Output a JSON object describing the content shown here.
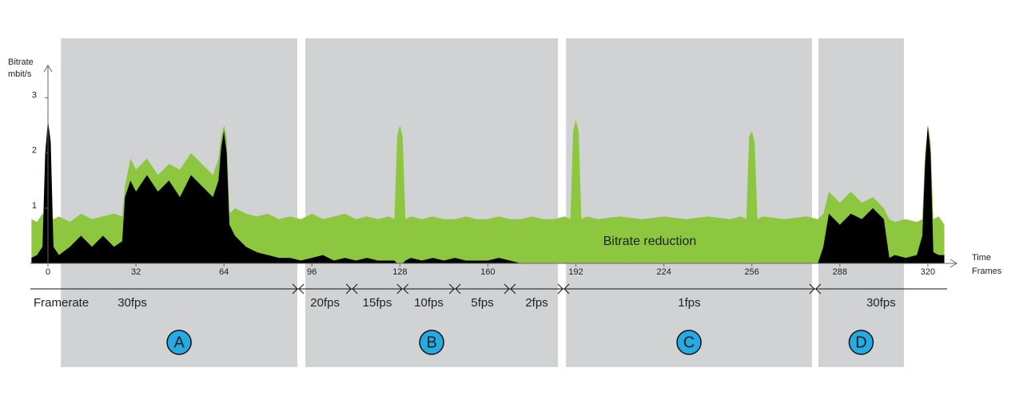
{
  "chart_data": {
    "type": "area",
    "y_label": [
      "Bitrate",
      "mbit/s"
    ],
    "x_label": [
      "Time",
      "Frames"
    ],
    "annotation": "Bitrate reduction",
    "xlim": [
      -6.4,
      327
    ],
    "ylim": [
      0,
      3.5
    ],
    "xticks": [
      0,
      32,
      64,
      96,
      128,
      160,
      192,
      224,
      256,
      288,
      320
    ],
    "yticks": [
      1,
      2,
      3
    ],
    "x": [
      -6,
      -4,
      -2,
      -1,
      0,
      1,
      2,
      4,
      8,
      12,
      16,
      20,
      24,
      27,
      28,
      30,
      32,
      36,
      40,
      44,
      48,
      52,
      56,
      60,
      62,
      63,
      64,
      65,
      66,
      68,
      72,
      76,
      80,
      84,
      88,
      92,
      96,
      100,
      104,
      108,
      112,
      116,
      120,
      124,
      126,
      127,
      128,
      129,
      130,
      132,
      136,
      140,
      144,
      148,
      152,
      156,
      160,
      164,
      168,
      172,
      176,
      180,
      184,
      188,
      190,
      191,
      192,
      193,
      194,
      196,
      200,
      208,
      216,
      224,
      232,
      240,
      248,
      252,
      254,
      255,
      256,
      257,
      258,
      260,
      268,
      276,
      280,
      282,
      284,
      288,
      292,
      296,
      300,
      304,
      306,
      308,
      312,
      316,
      318,
      319,
      320,
      321,
      322,
      324,
      326
    ],
    "series": [
      {
        "color": "#8dc63f",
        "values": [
          0.8,
          0.75,
          0.9,
          0.85,
          0.9,
          0.85,
          0.8,
          0.85,
          0.75,
          0.9,
          0.8,
          0.85,
          0.9,
          0.85,
          1.4,
          1.9,
          1.7,
          1.9,
          1.6,
          1.8,
          1.7,
          2.0,
          1.8,
          1.6,
          1.9,
          2.3,
          2.5,
          2.3,
          0.9,
          1.0,
          0.9,
          0.85,
          0.9,
          0.8,
          0.85,
          0.8,
          0.9,
          0.8,
          0.85,
          0.9,
          0.8,
          0.85,
          0.8,
          0.85,
          0.8,
          2.3,
          2.5,
          2.3,
          0.8,
          0.85,
          0.8,
          0.85,
          0.8,
          0.8,
          0.85,
          0.8,
          0.8,
          0.85,
          0.8,
          0.8,
          0.85,
          0.8,
          0.8,
          0.85,
          0.8,
          2.4,
          2.6,
          2.4,
          0.8,
          0.85,
          0.8,
          0.85,
          0.8,
          0.85,
          0.8,
          0.85,
          0.8,
          0.85,
          0.8,
          2.3,
          2.4,
          2.2,
          0.8,
          0.85,
          0.8,
          0.85,
          0.8,
          0.9,
          1.3,
          1.1,
          1.3,
          1.1,
          1.2,
          1.0,
          0.8,
          0.75,
          0.8,
          0.75,
          0.8,
          2.0,
          2.5,
          2.2,
          0.8,
          0.85,
          0.7
        ]
      },
      {
        "color": "#000000",
        "values": [
          0.1,
          0.15,
          0.3,
          2.0,
          2.6,
          2.2,
          0.3,
          0.15,
          0.3,
          0.5,
          0.3,
          0.5,
          0.3,
          0.4,
          1.2,
          1.5,
          1.3,
          1.6,
          1.3,
          1.5,
          1.2,
          1.6,
          1.4,
          1.2,
          1.5,
          2.1,
          2.4,
          2.0,
          0.7,
          0.5,
          0.3,
          0.2,
          0.15,
          0.1,
          0.1,
          0.05,
          0.1,
          0.15,
          0.05,
          0.1,
          0.05,
          0.1,
          0.05,
          0.05,
          0.05,
          0,
          0,
          0,
          0.05,
          0.1,
          0.05,
          0.1,
          0.05,
          0.1,
          0.05,
          0.05,
          0.05,
          0.1,
          0.05,
          0,
          0,
          0,
          0,
          0,
          0,
          0,
          0,
          0,
          0,
          0,
          0,
          0,
          0,
          0,
          0,
          0,
          0,
          0,
          0,
          0,
          0,
          0,
          0,
          0,
          0,
          0,
          0,
          0.3,
          0.9,
          0.7,
          0.9,
          0.8,
          1.0,
          0.8,
          0.1,
          0.15,
          0.1,
          0.15,
          0.5,
          1.8,
          2.5,
          2.0,
          0.2,
          0.15,
          0.15
        ]
      }
    ],
    "regions": [
      {
        "label": "A",
        "start": 4.7,
        "end": 90.7
      },
      {
        "label": "B",
        "start": 93.6,
        "end": 185.5
      },
      {
        "label": "C",
        "start": 188.4,
        "end": 277.9
      },
      {
        "label": "D",
        "start": 280.2,
        "end": 311.3
      }
    ],
    "framerate": {
      "label": "Framerate",
      "segments": [
        {
          "label": "30fps",
          "start": -6.4,
          "end": 91
        },
        {
          "label": "20fps",
          "start": 91,
          "end": 110.5
        },
        {
          "label": "15fps",
          "start": 110.5,
          "end": 129
        },
        {
          "label": "10fps",
          "start": 129,
          "end": 148
        },
        {
          "label": "5fps",
          "start": 148,
          "end": 168
        },
        {
          "label": "2fps",
          "start": 168,
          "end": 187.5
        },
        {
          "label": "1fps",
          "start": 187.5,
          "end": 279
        },
        {
          "label": "30fps",
          "start": 279,
          "end": 327
        }
      ]
    }
  }
}
